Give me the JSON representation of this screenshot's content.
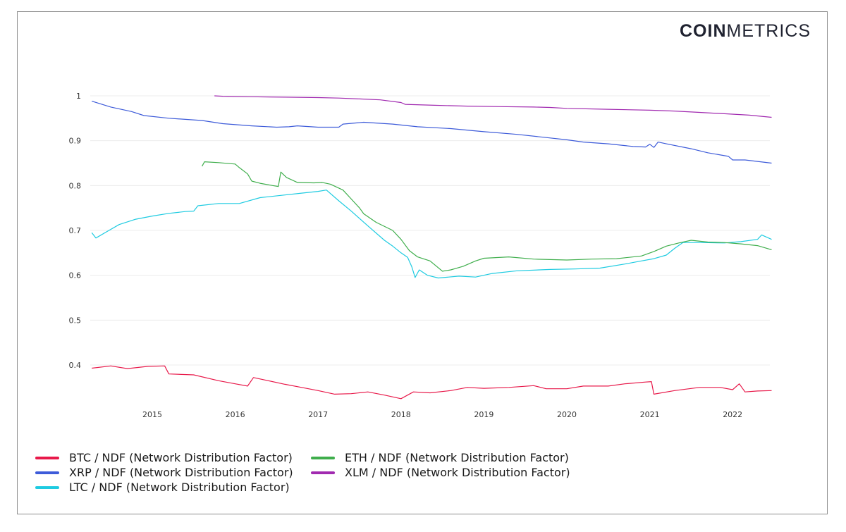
{
  "brand": {
    "bold": "COIN",
    "regular": "METRICS"
  },
  "chart_data": {
    "type": "line",
    "title": "",
    "xlabel": "",
    "ylabel": "",
    "xlim": [
      2014.25,
      2022.5
    ],
    "ylim": [
      0.3,
      1.0
    ],
    "x_ticks": [
      2015,
      2016,
      2017,
      2018,
      2019,
      2020,
      2021,
      2022
    ],
    "x_tick_labels": [
      "2015",
      "2016",
      "2017",
      "2018",
      "2019",
      "2020",
      "2021",
      "2022"
    ],
    "y_ticks": [
      0.4,
      0.5,
      0.6,
      0.7,
      0.8,
      0.9,
      1.0
    ],
    "y_tick_labels": [
      "0.4",
      "0.5",
      "0.6",
      "0.7",
      "0.8",
      "0.9",
      "1"
    ],
    "grid": "horizontal",
    "legend_position": "bottom-left",
    "series": [
      {
        "name": "BTC / NDF (Network Distribution Factor)",
        "color": "#e8194a",
        "points": [
          [
            2014.27,
            0.393
          ],
          [
            2014.5,
            0.398
          ],
          [
            2014.7,
            0.392
          ],
          [
            2014.95,
            0.397
          ],
          [
            2015.15,
            0.398
          ],
          [
            2015.2,
            0.38
          ],
          [
            2015.5,
            0.378
          ],
          [
            2015.8,
            0.365
          ],
          [
            2016.0,
            0.358
          ],
          [
            2016.15,
            0.353
          ],
          [
            2016.22,
            0.372
          ],
          [
            2016.4,
            0.365
          ],
          [
            2016.6,
            0.357
          ],
          [
            2016.8,
            0.35
          ],
          [
            2017.0,
            0.343
          ],
          [
            2017.2,
            0.335
          ],
          [
            2017.4,
            0.336
          ],
          [
            2017.6,
            0.34
          ],
          [
            2017.8,
            0.333
          ],
          [
            2018.0,
            0.325
          ],
          [
            2018.15,
            0.34
          ],
          [
            2018.35,
            0.338
          ],
          [
            2018.6,
            0.343
          ],
          [
            2018.8,
            0.35
          ],
          [
            2019.0,
            0.348
          ],
          [
            2019.3,
            0.35
          ],
          [
            2019.6,
            0.354
          ],
          [
            2019.75,
            0.347
          ],
          [
            2020.0,
            0.347
          ],
          [
            2020.2,
            0.353
          ],
          [
            2020.5,
            0.353
          ],
          [
            2020.7,
            0.358
          ],
          [
            2020.95,
            0.362
          ],
          [
            2021.02,
            0.363
          ],
          [
            2021.05,
            0.335
          ],
          [
            2021.3,
            0.343
          ],
          [
            2021.6,
            0.35
          ],
          [
            2021.85,
            0.35
          ],
          [
            2022.0,
            0.345
          ],
          [
            2022.08,
            0.358
          ],
          [
            2022.15,
            0.34
          ],
          [
            2022.3,
            0.342
          ],
          [
            2022.47,
            0.343
          ]
        ]
      },
      {
        "name": "XRP / NDF (Network Distribution Factor)",
        "color": "#3d5bd9",
        "points": [
          [
            2014.27,
            0.988
          ],
          [
            2014.5,
            0.975
          ],
          [
            2014.75,
            0.965
          ],
          [
            2014.9,
            0.956
          ],
          [
            2015.2,
            0.95
          ],
          [
            2015.6,
            0.945
          ],
          [
            2015.85,
            0.938
          ],
          [
            2016.2,
            0.933
          ],
          [
            2016.5,
            0.93
          ],
          [
            2016.65,
            0.931
          ],
          [
            2016.75,
            0.933
          ],
          [
            2017.0,
            0.93
          ],
          [
            2017.25,
            0.93
          ],
          [
            2017.3,
            0.937
          ],
          [
            2017.55,
            0.941
          ],
          [
            2017.9,
            0.937
          ],
          [
            2018.2,
            0.931
          ],
          [
            2018.6,
            0.927
          ],
          [
            2019.0,
            0.92
          ],
          [
            2019.4,
            0.914
          ],
          [
            2019.8,
            0.906
          ],
          [
            2020.0,
            0.902
          ],
          [
            2020.2,
            0.897
          ],
          [
            2020.5,
            0.893
          ],
          [
            2020.8,
            0.887
          ],
          [
            2020.95,
            0.886
          ],
          [
            2021.0,
            0.892
          ],
          [
            2021.05,
            0.885
          ],
          [
            2021.1,
            0.897
          ],
          [
            2021.2,
            0.893
          ],
          [
            2021.5,
            0.882
          ],
          [
            2021.7,
            0.873
          ],
          [
            2021.95,
            0.865
          ],
          [
            2022.0,
            0.857
          ],
          [
            2022.15,
            0.857
          ],
          [
            2022.47,
            0.85
          ]
        ]
      },
      {
        "name": "LTC / NDF (Network Distribution Factor)",
        "color": "#1ecbe1",
        "points": [
          [
            2014.27,
            0.695
          ],
          [
            2014.32,
            0.683
          ],
          [
            2014.45,
            0.697
          ],
          [
            2014.6,
            0.713
          ],
          [
            2014.8,
            0.725
          ],
          [
            2015.0,
            0.732
          ],
          [
            2015.2,
            0.738
          ],
          [
            2015.4,
            0.742
          ],
          [
            2015.5,
            0.743
          ],
          [
            2015.55,
            0.755
          ],
          [
            2015.8,
            0.76
          ],
          [
            2016.05,
            0.76
          ],
          [
            2016.3,
            0.773
          ],
          [
            2016.55,
            0.778
          ],
          [
            2016.8,
            0.783
          ],
          [
            2017.0,
            0.787
          ],
          [
            2017.1,
            0.79
          ],
          [
            2017.25,
            0.766
          ],
          [
            2017.4,
            0.743
          ],
          [
            2017.6,
            0.71
          ],
          [
            2017.8,
            0.678
          ],
          [
            2017.9,
            0.665
          ],
          [
            2018.0,
            0.65
          ],
          [
            2018.08,
            0.64
          ],
          [
            2018.13,
            0.619
          ],
          [
            2018.17,
            0.595
          ],
          [
            2018.22,
            0.612
          ],
          [
            2018.32,
            0.6
          ],
          [
            2018.45,
            0.594
          ],
          [
            2018.7,
            0.598
          ],
          [
            2018.9,
            0.596
          ],
          [
            2019.1,
            0.604
          ],
          [
            2019.4,
            0.61
          ],
          [
            2019.8,
            0.613
          ],
          [
            2020.1,
            0.614
          ],
          [
            2020.4,
            0.616
          ],
          [
            2020.7,
            0.625
          ],
          [
            2020.9,
            0.632
          ],
          [
            2021.05,
            0.637
          ],
          [
            2021.2,
            0.645
          ],
          [
            2021.3,
            0.66
          ],
          [
            2021.4,
            0.673
          ],
          [
            2021.6,
            0.673
          ],
          [
            2021.9,
            0.672
          ],
          [
            2022.1,
            0.675
          ],
          [
            2022.3,
            0.68
          ],
          [
            2022.35,
            0.69
          ],
          [
            2022.47,
            0.68
          ]
        ]
      },
      {
        "name": "ETH / NDF (Network Distribution Factor)",
        "color": "#3fae4c",
        "points": [
          [
            2015.6,
            0.843
          ],
          [
            2015.63,
            0.853
          ],
          [
            2015.8,
            0.851
          ],
          [
            2016.0,
            0.848
          ],
          [
            2016.05,
            0.84
          ],
          [
            2016.15,
            0.826
          ],
          [
            2016.2,
            0.81
          ],
          [
            2016.3,
            0.805
          ],
          [
            2016.45,
            0.8
          ],
          [
            2016.52,
            0.798
          ],
          [
            2016.55,
            0.83
          ],
          [
            2016.62,
            0.818
          ],
          [
            2016.75,
            0.807
          ],
          [
            2016.95,
            0.806
          ],
          [
            2017.05,
            0.807
          ],
          [
            2017.15,
            0.803
          ],
          [
            2017.3,
            0.79
          ],
          [
            2017.4,
            0.77
          ],
          [
            2017.5,
            0.75
          ],
          [
            2017.55,
            0.737
          ],
          [
            2017.7,
            0.718
          ],
          [
            2017.9,
            0.7
          ],
          [
            2018.0,
            0.68
          ],
          [
            2018.1,
            0.655
          ],
          [
            2018.2,
            0.641
          ],
          [
            2018.35,
            0.632
          ],
          [
            2018.5,
            0.609
          ],
          [
            2018.6,
            0.612
          ],
          [
            2018.75,
            0.62
          ],
          [
            2018.9,
            0.632
          ],
          [
            2019.0,
            0.638
          ],
          [
            2019.3,
            0.641
          ],
          [
            2019.6,
            0.636
          ],
          [
            2020.0,
            0.634
          ],
          [
            2020.3,
            0.636
          ],
          [
            2020.6,
            0.637
          ],
          [
            2020.9,
            0.643
          ],
          [
            2021.05,
            0.653
          ],
          [
            2021.2,
            0.665
          ],
          [
            2021.35,
            0.672
          ],
          [
            2021.5,
            0.678
          ],
          [
            2021.7,
            0.674
          ],
          [
            2021.9,
            0.673
          ],
          [
            2022.1,
            0.67
          ],
          [
            2022.3,
            0.666
          ],
          [
            2022.47,
            0.657
          ]
        ]
      },
      {
        "name": "XLM / NDF (Network Distribution Factor)",
        "color": "#a12ab0",
        "points": [
          [
            2015.75,
            1.0
          ],
          [
            2015.85,
            0.999
          ],
          [
            2016.2,
            0.998
          ],
          [
            2016.6,
            0.997
          ],
          [
            2017.0,
            0.996
          ],
          [
            2017.25,
            0.995
          ],
          [
            2017.5,
            0.993
          ],
          [
            2017.75,
            0.991
          ],
          [
            2018.0,
            0.985
          ],
          [
            2018.05,
            0.981
          ],
          [
            2018.4,
            0.979
          ],
          [
            2018.8,
            0.977
          ],
          [
            2019.2,
            0.976
          ],
          [
            2019.6,
            0.975
          ],
          [
            2019.8,
            0.974
          ],
          [
            2020.0,
            0.972
          ],
          [
            2020.5,
            0.97
          ],
          [
            2021.0,
            0.968
          ],
          [
            2021.3,
            0.966
          ],
          [
            2021.6,
            0.963
          ],
          [
            2021.9,
            0.96
          ],
          [
            2022.2,
            0.957
          ],
          [
            2022.47,
            0.952
          ]
        ]
      }
    ]
  }
}
